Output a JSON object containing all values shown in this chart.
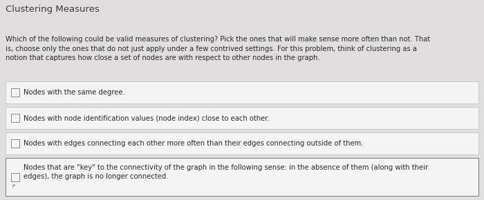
{
  "title": "Clustering Measures",
  "intro_text": "Which of the following could be valid measures of clustering? Pick the ones that will make sense more often than not. That\nis, choose only the ones that do not just apply under a few contrived settings. For this problem, think of clustering as a\nnotion that captures how close a set of nodes are with respect to other nodes in the graph.",
  "options": [
    {
      "text": "Nodes with the same degree.",
      "multiline": false,
      "has_cursor": false,
      "highlighted": false
    },
    {
      "text": "Nodes with node identification values (node index) close to each other.",
      "multiline": false,
      "has_cursor": false,
      "highlighted": false
    },
    {
      "text": "Nodes with edges connecting each other more often than their edges connecting outside of them.",
      "multiline": false,
      "has_cursor": false,
      "highlighted": false
    },
    {
      "text": "Nodes that are \"key\" to the connectivity of the graph in the following sense: in the absence of them (along with their\nedges), the graph is no longer connected.",
      "multiline": true,
      "has_cursor": true,
      "highlighted": true
    }
  ],
  "bg_color": "#e0dede",
  "box_color": "#f5f4f4",
  "box_border_normal": "#c8c8c8",
  "box_border_highlighted": "#7a7a7a",
  "title_color": "#3a3a3a",
  "text_color": "#2a2a2a",
  "title_fontsize": 9.5,
  "intro_fontsize": 7.2,
  "option_fontsize": 7.2
}
